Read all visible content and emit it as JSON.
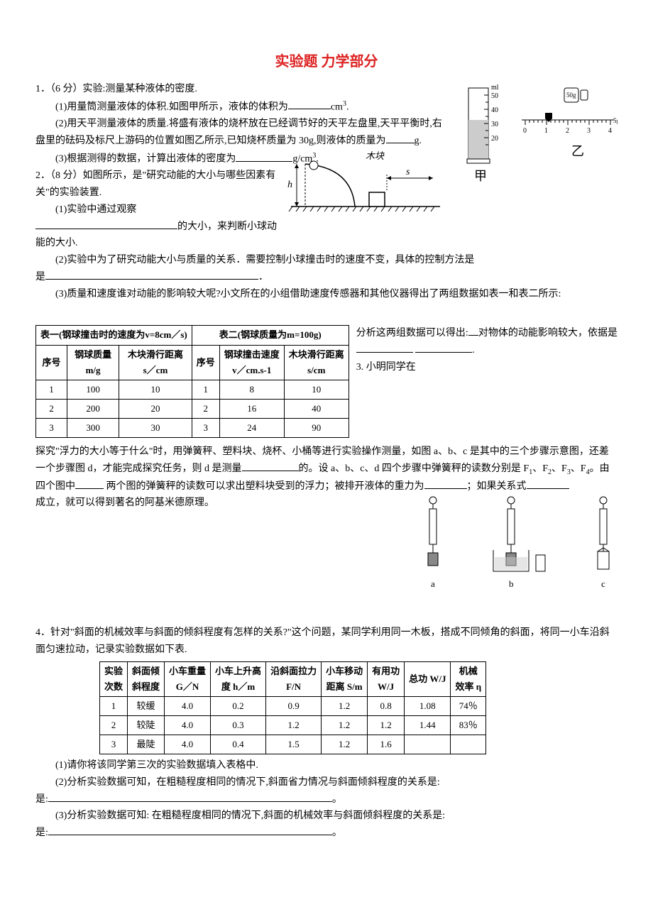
{
  "title": "实验题  力学部分",
  "q1": {
    "header": "1．（6 分）实验:测量某种液体的密度.",
    "p1_a": "(1)用量筒测量液体的体积.如图甲所示，液体的体积为",
    "p1_b": "cm",
    "p1_c": ".",
    "p2": "(2)用天平测量液体的质量.将盛有液体的烧杯放在已经调节好的天平左盘里,天平平衡时,右盘里的砝码及标尺上游码的位置如图乙所示,已知烧杯质量为 30g,则液体的质量为",
    "p2_b": "g.",
    "p3_a": "(3)根据测得的数据，计算出液体的密度为",
    "p3_b": "g/cm",
    "p3_c": ".",
    "fig_jia": "甲",
    "fig_yi": "乙",
    "cyl_marks": [
      "50",
      "40",
      "30",
      "20"
    ],
    "cyl_unit": "ml",
    "weight_label": "50g"
  },
  "q2": {
    "header": "2．（8 分）如图所示，是\"研究动能的大小与哪些因素有关\"的实验装置.",
    "p1_a": "(1)实验中通过观察",
    "p1_b": "的大小，来判断小球动能的大小.",
    "p2_a": "(2)实验中为了研究动能大小与质量的关系．需要控制小球撞击时的速度不变，具体的控制方法是",
    "p3_a": "(3)质量和速度谁对动能的影响较大呢?小文所在的小组借助速度传感器和其他仪器得出了两组数据如表一和表二所示:",
    "side_a": "分析这两组数据可以得出:",
    "side_b": "对物体的动能影响较大，依据是",
    "q3_intro": "3. 小明同学在",
    "fig_labels": {
      "h": "h",
      "s": "s",
      "block": "木块"
    },
    "table1": {
      "title": "表一(钢球撞击时的速度为v=8cm／s)",
      "col_seq": "序号",
      "col_mass": "钢球质量\nm/g",
      "col_dist": "木块滑行距离\ns／cm",
      "rows": [
        {
          "seq": "1",
          "mass": "100",
          "dist": "10"
        },
        {
          "seq": "2",
          "mass": "200",
          "dist": "20"
        },
        {
          "seq": "3",
          "mass": "300",
          "dist": "30"
        }
      ]
    },
    "table2": {
      "title": "表二(钢球质量为m=100g)",
      "col_seq": "序号",
      "col_v": "钢球撞击速度\nv／cm.s-1",
      "col_dist": "木块滑行距离\ns/cm",
      "rows": [
        {
          "seq": "1",
          "v": "8",
          "dist": "10"
        },
        {
          "seq": "2",
          "v": "16",
          "dist": "40"
        },
        {
          "seq": "3",
          "v": "24",
          "dist": "90"
        }
      ]
    }
  },
  "q3": {
    "p1_a": "探究\"浮力的大小等于什么\"时，用弹簧秤、塑料块、烧杯、小桶等进行实验操作测量，如图 a、b、c 是其中的三个步骤示意图，还差一个步骤图 d，才能完成探究任务，则 d 是测量",
    "p1_b": "的。设 a、b、c、d 四个步骤中弹簧秤的读数分别是 F",
    "p1_c": "、F",
    "p1_d": "、F",
    "p1_e": "、F",
    "p1_f": "。由四个图中",
    "p1_g": " 两个图的弹簧秤的读数可以求出塑料块受到的浮力；被排开液体的重力为",
    "p1_h": "；如果关系式",
    "p2": "成立，就可以得到著名的阿基米德原理。",
    "fig_labels": {
      "a": "a",
      "b": "b",
      "c": "c"
    }
  },
  "q4": {
    "header": "4．针对\"斜面的机械效率与斜面的倾斜程度有怎样的关系?\"这个问题，某同学利用同一木板，搭成不同倾角的斜面，将同一小车沿斜面匀速拉动，记录实验数据如下表.",
    "table": {
      "cols": [
        "实验\n次数",
        "斜面倾\n斜程度",
        "小车重量\nG／N",
        "小车上升高\n度 h／m",
        "沿斜面拉力\nF/N",
        "小车移动\n距离 S/m",
        "有用功\nW/J",
        "总功 W/J",
        "机械\n效率 η"
      ],
      "rows": [
        [
          "1",
          "较缓",
          "4.0",
          "0.2",
          "0.9",
          "1.2",
          "0.8",
          "1.08",
          "74％"
        ],
        [
          "2",
          "较陡",
          "4.0",
          "0.3",
          "1.2",
          "1.2",
          "1.2",
          "1.44",
          "83％"
        ],
        [
          "3",
          "最陡",
          "4.0",
          "0.4",
          "1.5",
          "1.2",
          "1.6",
          "",
          ""
        ]
      ]
    },
    "p1": "(1)请你将该同学第三次的实验数据填入表格中.",
    "p2_a": "(2)分析实验数据可知，在粗糙程度相同的情况下,斜面省力情况与斜面倾斜程度的关系是:",
    "p3_a": "(3)分析实验数据可知: 在粗糙程度相同的情况下,斜面的机械效率与斜面倾斜程度的关系是:",
    "end": "。"
  }
}
